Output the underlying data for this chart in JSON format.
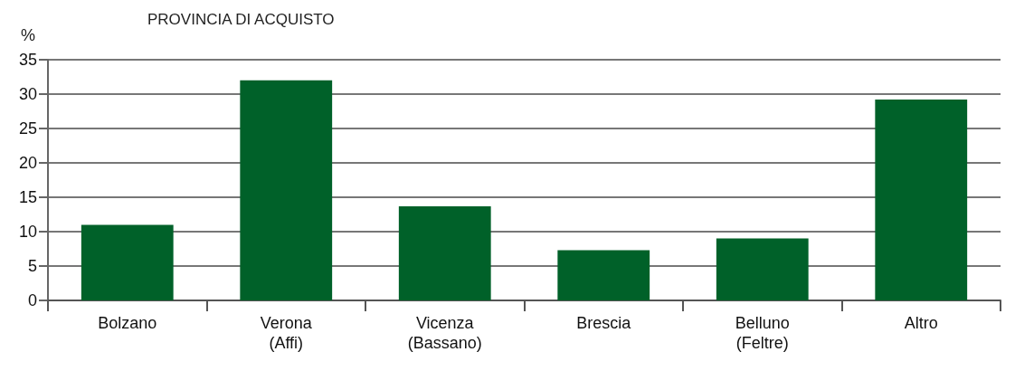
{
  "chart_data": {
    "type": "bar",
    "title": "PROVINCIA DI ACQUISTO",
    "ylabel": "%",
    "categories": [
      "Bolzano",
      "Verona\n(Affi)",
      "Vicenza\n(Bassano)",
      "Brescia",
      "Belluno\n(Feltre)",
      "Altro"
    ],
    "values": [
      11,
      32,
      13.7,
      7.3,
      9,
      29.2
    ],
    "color": "#006129",
    "ylim": [
      0,
      35
    ],
    "yticks": [
      0,
      5,
      10,
      15,
      20,
      25,
      30,
      35
    ],
    "grid": "y"
  }
}
